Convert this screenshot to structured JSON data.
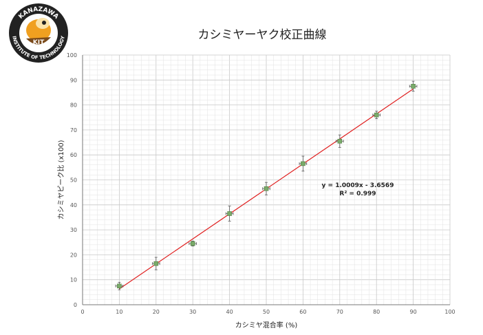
{
  "logo": {
    "top_text": "KANAZAWA",
    "bottom_text": "INSTITUTE OF TECHNOLOGY",
    "center_text": "KIT"
  },
  "chart_data": {
    "type": "scatter",
    "title": "カシミヤーヤク校正曲線",
    "xlabel": "カシミヤ混合率 (%)",
    "ylabel": "カシミヤピーク比 (x100)",
    "xlim": [
      0,
      100
    ],
    "ylim": [
      0,
      100
    ],
    "x_ticks": [
      0,
      10,
      20,
      30,
      40,
      50,
      60,
      70,
      80,
      90,
      100
    ],
    "y_ticks": [
      0,
      10,
      20,
      30,
      40,
      50,
      60,
      70,
      80,
      90,
      100
    ],
    "grid": true,
    "series": [
      {
        "x": [
          10,
          20,
          30,
          40,
          50,
          60,
          70,
          80,
          90
        ],
        "y": [
          7.5,
          16.5,
          24.5,
          36.5,
          46.5,
          56.5,
          65.5,
          76,
          87.5
        ],
        "y_err": [
          1.5,
          2.5,
          1,
          3,
          2.5,
          3,
          2.5,
          1.5,
          2
        ],
        "x_err": [
          1,
          1,
          1,
          1,
          1,
          1,
          1,
          1,
          1
        ]
      }
    ],
    "trendline": {
      "slope": 1.0009,
      "intercept": -3.6569,
      "x_range": [
        10,
        90
      ],
      "equation": "y = 1.0009x - 3.6569",
      "r2": "R² = 0.999"
    },
    "colors": {
      "marker": "#7aab6a",
      "trendline": "#e02020",
      "grid_major": "#c8c8c8",
      "grid_minor": "#e2e2e2"
    }
  }
}
